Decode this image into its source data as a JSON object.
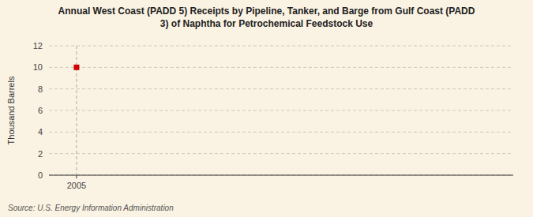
{
  "chart_data": {
    "type": "scatter",
    "title": "Annual West Coast (PADD 5) Receipts by Pipeline, Tanker, and Barge from Gulf Coast (PADD\n3) of Naphtha for Petrochemical Feedstock Use",
    "y_label": "Thousand Barrels",
    "source": "Source: U.S. Energy Information Administration",
    "x": [
      2005
    ],
    "values": [
      10
    ],
    "color": "#cc0000",
    "marker": "square",
    "xlim": [
      2004.4,
      2014.5
    ],
    "ylim": [
      0,
      12
    ],
    "xticks": [
      2005
    ],
    "yticks": [
      0,
      2,
      4,
      6,
      8,
      10,
      12
    ],
    "grid": true
  }
}
